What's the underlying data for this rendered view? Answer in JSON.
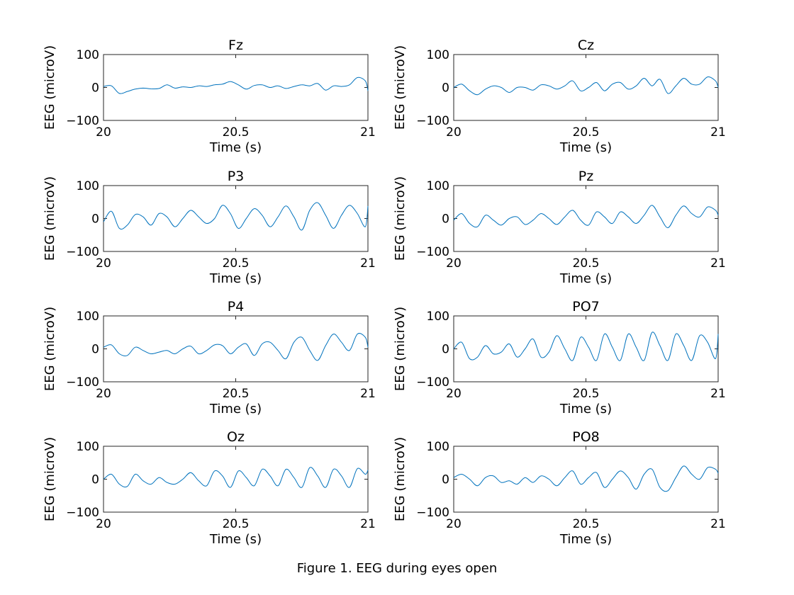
{
  "figure": {
    "caption": "Figure 1. EEG during eyes open",
    "trace_color": "#0072BD"
  },
  "chart_data": [
    {
      "type": "line",
      "title": "Fz",
      "xlabel": "Time (s)",
      "ylabel": "EEG (microV)",
      "xlim": [
        20,
        21
      ],
      "ylim": [
        -100,
        100
      ],
      "xticks": [
        20,
        20.5,
        21
      ],
      "xtick_labels": [
        "20",
        "20.5",
        "21"
      ],
      "yticks": [
        -100,
        0,
        100
      ],
      "ytick_labels": [
        "−100",
        "0",
        "100"
      ],
      "series": [
        {
          "x": [
            20,
            20.03,
            20.06,
            20.09,
            20.12,
            20.15,
            20.18,
            20.21,
            20.24,
            20.27,
            20.3,
            20.33,
            20.36,
            20.39,
            20.42,
            20.45,
            20.48,
            20.51,
            20.54,
            20.57,
            20.6,
            20.63,
            20.66,
            20.69,
            20.72,
            20.75,
            20.78,
            20.81,
            20.84,
            20.87,
            20.9,
            20.93,
            20.96,
            20.99,
            21
          ],
          "y": [
            3,
            5,
            -18,
            -12,
            -5,
            -2,
            -4,
            -3,
            8,
            -2,
            2,
            0,
            5,
            3,
            8,
            10,
            18,
            8,
            -5,
            6,
            8,
            0,
            5,
            -3,
            3,
            8,
            5,
            12,
            -8,
            5,
            3,
            8,
            30,
            20,
            -10
          ]
        }
      ]
    },
    {
      "type": "line",
      "title": "Cz",
      "xlabel": "Time (s)",
      "ylabel": "EEG (microV)",
      "xlim": [
        20,
        21
      ],
      "ylim": [
        -100,
        100
      ],
      "xticks": [
        20,
        20.5,
        21
      ],
      "xtick_labels": [
        "20",
        "20.5",
        "21"
      ],
      "yticks": [
        -100,
        0,
        100
      ],
      "ytick_labels": [
        "−100",
        "0",
        "100"
      ],
      "series": [
        {
          "x": [
            20,
            20.03,
            20.06,
            20.09,
            20.12,
            20.15,
            20.18,
            20.21,
            20.24,
            20.27,
            20.3,
            20.33,
            20.36,
            20.39,
            20.42,
            20.45,
            20.48,
            20.51,
            20.54,
            20.57,
            20.6,
            20.63,
            20.66,
            20.69,
            20.72,
            20.75,
            20.78,
            20.81,
            20.84,
            20.87,
            20.9,
            20.93,
            20.96,
            20.99,
            21
          ],
          "y": [
            0,
            10,
            -10,
            -22,
            -5,
            5,
            0,
            -15,
            0,
            0,
            -8,
            8,
            5,
            -5,
            5,
            20,
            -10,
            0,
            15,
            -10,
            10,
            15,
            -5,
            5,
            28,
            5,
            25,
            -18,
            5,
            28,
            10,
            10,
            32,
            20,
            0
          ]
        }
      ]
    },
    {
      "type": "line",
      "title": "P3",
      "xlabel": "Time (s)",
      "ylabel": "EEG (microV)",
      "xlim": [
        20,
        21
      ],
      "ylim": [
        -100,
        100
      ],
      "xticks": [
        20,
        20.5,
        21
      ],
      "xtick_labels": [
        "20",
        "20.5",
        "21"
      ],
      "yticks": [
        -100,
        0,
        100
      ],
      "ytick_labels": [
        "−100",
        "0",
        "100"
      ],
      "series": [
        {
          "x": [
            20,
            20.03,
            20.06,
            20.09,
            20.12,
            20.15,
            20.18,
            20.21,
            20.24,
            20.27,
            20.3,
            20.33,
            20.36,
            20.39,
            20.42,
            20.45,
            20.48,
            20.51,
            20.54,
            20.57,
            20.6,
            20.63,
            20.66,
            20.69,
            20.72,
            20.75,
            20.78,
            20.81,
            20.84,
            20.87,
            20.9,
            20.93,
            20.96,
            20.99,
            21
          ],
          "y": [
            -10,
            22,
            -30,
            -20,
            12,
            5,
            -20,
            15,
            5,
            -25,
            0,
            25,
            5,
            -15,
            0,
            40,
            15,
            -30,
            0,
            30,
            10,
            -25,
            5,
            38,
            5,
            -35,
            25,
            48,
            10,
            -30,
            10,
            40,
            15,
            -25,
            38
          ]
        }
      ]
    },
    {
      "type": "line",
      "title": "Pz",
      "xlabel": "Time (s)",
      "ylabel": "EEG (microV)",
      "xlim": [
        20,
        21
      ],
      "ylim": [
        -100,
        100
      ],
      "xticks": [
        20,
        20.5,
        21
      ],
      "xtick_labels": [
        "20",
        "20.5",
        "21"
      ],
      "yticks": [
        -100,
        0,
        100
      ],
      "ytick_labels": [
        "−100",
        "0",
        "100"
      ],
      "series": [
        {
          "x": [
            20,
            20.03,
            20.06,
            20.09,
            20.12,
            20.15,
            20.18,
            20.21,
            20.24,
            20.27,
            20.3,
            20.33,
            20.36,
            20.39,
            20.42,
            20.45,
            20.48,
            20.51,
            20.54,
            20.57,
            20.6,
            20.63,
            20.66,
            20.69,
            20.72,
            20.75,
            20.78,
            20.81,
            20.84,
            20.87,
            20.9,
            20.93,
            20.96,
            20.99,
            21
          ],
          "y": [
            -5,
            15,
            -15,
            -25,
            10,
            -5,
            -20,
            0,
            5,
            -18,
            -5,
            15,
            0,
            -18,
            5,
            25,
            -5,
            -20,
            20,
            5,
            -15,
            20,
            5,
            -15,
            10,
            40,
            5,
            -28,
            10,
            38,
            15,
            5,
            35,
            25,
            10
          ]
        }
      ]
    },
    {
      "type": "line",
      "title": "P4",
      "xlabel": "Time (s)",
      "ylabel": "EEG (microV)",
      "xlim": [
        20,
        21
      ],
      "ylim": [
        -100,
        100
      ],
      "xticks": [
        20,
        20.5,
        21
      ],
      "xtick_labels": [
        "20",
        "20.5",
        "21"
      ],
      "yticks": [
        -100,
        0,
        100
      ],
      "ytick_labels": [
        "−100",
        "0",
        "100"
      ],
      "series": [
        {
          "x": [
            20,
            20.03,
            20.06,
            20.09,
            20.12,
            20.15,
            20.18,
            20.21,
            20.24,
            20.27,
            20.3,
            20.33,
            20.36,
            20.39,
            20.42,
            20.45,
            20.48,
            20.51,
            20.54,
            20.57,
            20.6,
            20.63,
            20.66,
            20.69,
            20.72,
            20.75,
            20.78,
            20.81,
            20.84,
            20.87,
            20.9,
            20.93,
            20.96,
            20.99,
            21
          ],
          "y": [
            5,
            12,
            -15,
            -20,
            5,
            -5,
            -15,
            -10,
            -5,
            -15,
            0,
            8,
            -15,
            -5,
            12,
            10,
            -15,
            5,
            15,
            -20,
            15,
            20,
            -5,
            -30,
            20,
            35,
            -5,
            -35,
            10,
            45,
            20,
            -5,
            45,
            35,
            5
          ]
        }
      ]
    },
    {
      "type": "line",
      "title": "PO7",
      "xlabel": "Time (s)",
      "ylabel": "EEG (microV)",
      "xlim": [
        20,
        21
      ],
      "ylim": [
        -100,
        100
      ],
      "xticks": [
        20,
        20.5,
        21
      ],
      "xtick_labels": [
        "20",
        "20.5",
        "21"
      ],
      "yticks": [
        -100,
        0,
        100
      ],
      "ytick_labels": [
        "−100",
        "0",
        "100"
      ],
      "series": [
        {
          "x": [
            20,
            20.03,
            20.06,
            20.09,
            20.12,
            20.15,
            20.18,
            20.21,
            20.24,
            20.27,
            20.3,
            20.33,
            20.36,
            20.39,
            20.42,
            20.45,
            20.48,
            20.51,
            20.54,
            20.57,
            20.6,
            20.63,
            20.66,
            20.69,
            20.72,
            20.75,
            20.78,
            20.81,
            20.84,
            20.87,
            20.9,
            20.93,
            20.96,
            20.99,
            21
          ],
          "y": [
            0,
            20,
            -30,
            -25,
            10,
            -15,
            -10,
            15,
            -25,
            0,
            30,
            -25,
            -10,
            40,
            0,
            -35,
            35,
            5,
            -35,
            45,
            5,
            -35,
            45,
            5,
            -35,
            50,
            10,
            -35,
            45,
            10,
            -35,
            40,
            20,
            -30,
            45
          ]
        }
      ]
    },
    {
      "type": "line",
      "title": "Oz",
      "xlabel": "Time (s)",
      "ylabel": "EEG (microV)",
      "xlim": [
        20,
        21
      ],
      "ylim": [
        -100,
        100
      ],
      "xticks": [
        20,
        20.5,
        21
      ],
      "xtick_labels": [
        "20",
        "20.5",
        "21"
      ],
      "yticks": [
        -100,
        0,
        100
      ],
      "ytick_labels": [
        "−100",
        "0",
        "100"
      ],
      "series": [
        {
          "x": [
            20,
            20.03,
            20.06,
            20.09,
            20.12,
            20.15,
            20.18,
            20.21,
            20.24,
            20.27,
            20.3,
            20.33,
            20.36,
            20.39,
            20.42,
            20.45,
            20.48,
            20.51,
            20.54,
            20.57,
            20.6,
            20.63,
            20.66,
            20.69,
            20.72,
            20.75,
            20.78,
            20.81,
            20.84,
            20.87,
            20.9,
            20.93,
            20.96,
            20.99,
            21
          ],
          "y": [
            0,
            15,
            -15,
            -22,
            15,
            -5,
            -15,
            5,
            -10,
            -15,
            0,
            20,
            -5,
            -20,
            25,
            10,
            -25,
            25,
            5,
            -20,
            30,
            10,
            -20,
            30,
            5,
            -25,
            35,
            10,
            -25,
            30,
            10,
            -25,
            32,
            15,
            28
          ]
        }
      ]
    },
    {
      "type": "line",
      "title": "PO8",
      "xlabel": "Time (s)",
      "ylabel": "EEG (microV)",
      "xlim": [
        20,
        21
      ],
      "ylim": [
        -100,
        100
      ],
      "xticks": [
        20,
        20.5,
        21
      ],
      "xtick_labels": [
        "20",
        "20.5",
        "21"
      ],
      "yticks": [
        -100,
        0,
        100
      ],
      "ytick_labels": [
        "−100",
        "0",
        "100"
      ],
      "series": [
        {
          "x": [
            20,
            20.03,
            20.06,
            20.09,
            20.12,
            20.15,
            20.18,
            20.21,
            20.24,
            20.27,
            20.3,
            20.33,
            20.36,
            20.39,
            20.42,
            20.45,
            20.48,
            20.51,
            20.54,
            20.57,
            20.6,
            20.63,
            20.66,
            20.69,
            20.72,
            20.75,
            20.78,
            20.81,
            20.84,
            20.87,
            20.9,
            20.93,
            20.96,
            20.99,
            21
          ],
          "y": [
            5,
            15,
            0,
            -20,
            5,
            10,
            -10,
            -5,
            -15,
            5,
            -10,
            10,
            0,
            -20,
            5,
            25,
            -15,
            5,
            20,
            -25,
            0,
            25,
            5,
            -30,
            15,
            30,
            -25,
            -35,
            5,
            40,
            15,
            0,
            35,
            30,
            18
          ]
        }
      ]
    }
  ]
}
